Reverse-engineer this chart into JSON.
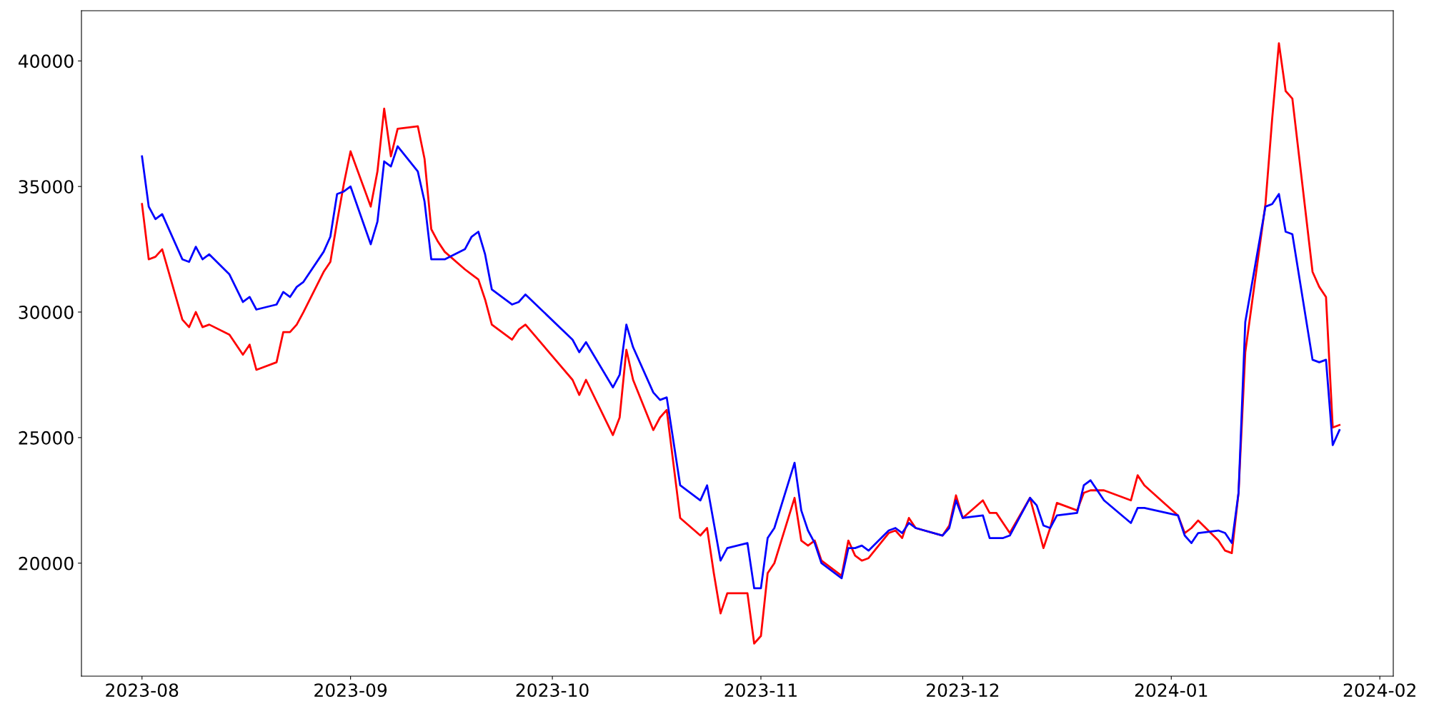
{
  "chart_data": {
    "type": "line",
    "x": [
      "2023-08-01",
      "2023-08-02",
      "2023-08-03",
      "2023-08-04",
      "2023-08-07",
      "2023-08-08",
      "2023-08-09",
      "2023-08-10",
      "2023-08-11",
      "2023-08-14",
      "2023-08-16",
      "2023-08-17",
      "2023-08-18",
      "2023-08-21",
      "2023-08-22",
      "2023-08-23",
      "2023-08-24",
      "2023-08-25",
      "2023-08-28",
      "2023-08-29",
      "2023-08-30",
      "2023-08-31",
      "2023-09-01",
      "2023-09-04",
      "2023-09-05",
      "2023-09-06",
      "2023-09-07",
      "2023-09-08",
      "2023-09-11",
      "2023-09-12",
      "2023-09-13",
      "2023-09-14",
      "2023-09-15",
      "2023-09-18",
      "2023-09-19",
      "2023-09-20",
      "2023-09-21",
      "2023-09-22",
      "2023-09-25",
      "2023-09-26",
      "2023-09-27",
      "2023-10-04",
      "2023-10-05",
      "2023-10-06",
      "2023-10-10",
      "2023-10-11",
      "2023-10-12",
      "2023-10-13",
      "2023-10-16",
      "2023-10-17",
      "2023-10-18",
      "2023-10-20",
      "2023-10-23",
      "2023-10-24",
      "2023-10-25",
      "2023-10-26",
      "2023-10-27",
      "2023-10-30",
      "2023-10-31",
      "2023-11-01",
      "2023-11-02",
      "2023-11-03",
      "2023-11-06",
      "2023-11-07",
      "2023-11-08",
      "2023-11-09",
      "2023-11-10",
      "2023-11-13",
      "2023-11-14",
      "2023-11-15",
      "2023-11-16",
      "2023-11-17",
      "2023-11-20",
      "2023-11-21",
      "2023-11-22",
      "2023-11-23",
      "2023-11-24",
      "2023-11-28",
      "2023-11-29",
      "2023-11-30",
      "2023-12-01",
      "2023-12-04",
      "2023-12-05",
      "2023-12-06",
      "2023-12-07",
      "2023-12-08",
      "2023-12-11",
      "2023-12-12",
      "2023-12-13",
      "2023-12-14",
      "2023-12-15",
      "2023-12-18",
      "2023-12-19",
      "2023-12-20",
      "2023-12-22",
      "2023-12-26",
      "2023-12-27",
      "2023-12-28",
      "2024-01-02",
      "2024-01-03",
      "2024-01-04",
      "2024-01-05",
      "2024-01-08",
      "2024-01-09",
      "2024-01-10",
      "2024-01-11",
      "2024-01-12",
      "2024-01-15",
      "2024-01-16",
      "2024-01-17",
      "2024-01-18",
      "2024-01-19",
      "2024-01-22",
      "2024-01-23",
      "2024-01-24",
      "2024-01-25",
      "2024-01-26"
    ],
    "series": [
      {
        "color": "#ff0000",
        "values": [
          34300,
          32100,
          32200,
          32500,
          29700,
          29400,
          30000,
          29400,
          29500,
          29100,
          28300,
          28700,
          27700,
          28000,
          29200,
          29200,
          29500,
          30000,
          31600,
          32000,
          33600,
          35100,
          36400,
          34200,
          35600,
          38100,
          36200,
          37300,
          37400,
          36100,
          33300,
          32800,
          32400,
          31700,
          31500,
          31300,
          30500,
          29500,
          28900,
          29300,
          29500,
          27300,
          26700,
          27300,
          25100,
          25800,
          28500,
          27300,
          25300,
          25800,
          26100,
          21800,
          21100,
          21400,
          19600,
          18000,
          18800,
          18800,
          16800,
          17100,
          19600,
          20000,
          22600,
          20900,
          20700,
          20900,
          20100,
          19500,
          20900,
          20300,
          20100,
          20200,
          21200,
          21300,
          21000,
          21800,
          21400,
          21100,
          21500,
          22700,
          21800,
          22500,
          22000,
          22000,
          21600,
          21200,
          22600,
          21600,
          20600,
          21400,
          22400,
          22100,
          22800,
          22900,
          22900,
          22500,
          23500,
          23100,
          21900,
          21200,
          21400,
          21700,
          20900,
          20500,
          20400,
          22800,
          28400,
          34300,
          37700,
          40700,
          38800,
          38500,
          31600,
          31000,
          30600,
          25400,
          25500
        ]
      },
      {
        "color": "#0000ff",
        "values": [
          36200,
          34200,
          33700,
          33900,
          32100,
          32000,
          32600,
          32100,
          32300,
          31500,
          30400,
          30600,
          30100,
          30300,
          30800,
          30600,
          31000,
          31200,
          32400,
          33000,
          34700,
          34800,
          35000,
          32700,
          33600,
          36000,
          35800,
          36600,
          35600,
          34400,
          32100,
          32100,
          32100,
          32500,
          33000,
          33200,
          32300,
          30900,
          30300,
          30400,
          30700,
          28900,
          28400,
          28800,
          27000,
          27500,
          29500,
          28600,
          26800,
          26500,
          26600,
          23100,
          22500,
          23100,
          21600,
          20100,
          20600,
          20800,
          19000,
          19000,
          21000,
          21400,
          24000,
          22100,
          21300,
          20800,
          20000,
          19400,
          20600,
          20600,
          20700,
          20500,
          21300,
          21400,
          21200,
          21600,
          21400,
          21100,
          21400,
          22500,
          21800,
          21900,
          21000,
          21000,
          21000,
          21100,
          22600,
          22300,
          21500,
          21400,
          21900,
          22000,
          23100,
          23300,
          22500,
          21600,
          22200,
          22200,
          21900,
          21100,
          20800,
          21200,
          21300,
          21200,
          20800,
          22800,
          29600,
          34200,
          34300,
          34700,
          33200,
          33100,
          28100,
          28000,
          28100,
          24700,
          25300
        ]
      }
    ],
    "xlim": [
      "2023-07-23",
      "2024-02-03"
    ],
    "xticks": [
      "2023-08",
      "2023-09",
      "2023-10",
      "2023-11",
      "2023-12",
      "2024-01",
      "2024-02"
    ],
    "ylim": [
      15500,
      42000
    ],
    "yticks": [
      20000,
      25000,
      30000,
      35000,
      40000
    ],
    "grid": false,
    "line_style": "solid",
    "marker": "none"
  }
}
